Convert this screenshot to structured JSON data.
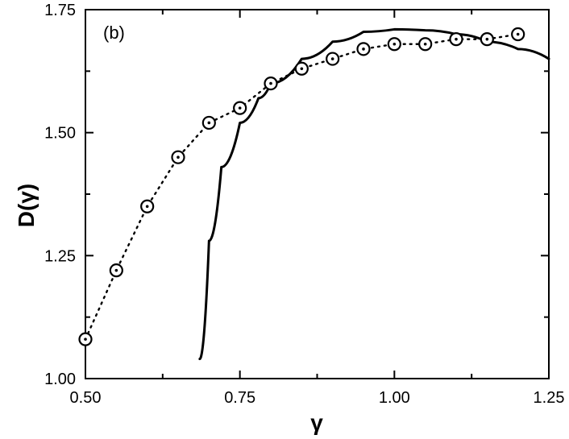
{
  "chart_data": {
    "type": "line",
    "panel_label": "(b)",
    "xlabel": "γ",
    "ylabel": "D(γ)",
    "xlim": [
      0.5,
      1.25
    ],
    "ylim": [
      1.0,
      1.75
    ],
    "x_ticks": [
      "0.50",
      "0.75",
      "1.00",
      "1.25"
    ],
    "y_ticks": [
      "1.00",
      "1.25",
      "1.50",
      "1.75"
    ],
    "grid": false,
    "series": [
      {
        "style": "dotted line with open circle markers",
        "color": "#000000",
        "x": [
          0.5,
          0.55,
          0.6,
          0.65,
          0.7,
          0.75,
          0.8,
          0.85,
          0.9,
          0.95,
          1.0,
          1.05,
          1.1,
          1.15,
          1.2
        ],
        "y": [
          1.08,
          1.22,
          1.35,
          1.45,
          1.52,
          1.55,
          1.6,
          1.63,
          1.65,
          1.67,
          1.68,
          1.68,
          1.69,
          1.69,
          1.7
        ]
      },
      {
        "style": "solid line",
        "color": "#000000",
        "x": [
          0.685,
          0.7,
          0.72,
          0.75,
          0.78,
          0.8,
          0.85,
          0.9,
          0.95,
          1.0,
          1.05,
          1.1,
          1.15,
          1.2,
          1.25
        ],
        "y": [
          1.04,
          1.28,
          1.43,
          1.52,
          1.57,
          1.6,
          1.65,
          1.685,
          1.705,
          1.71,
          1.708,
          1.7,
          1.685,
          1.67,
          1.65
        ]
      }
    ]
  }
}
